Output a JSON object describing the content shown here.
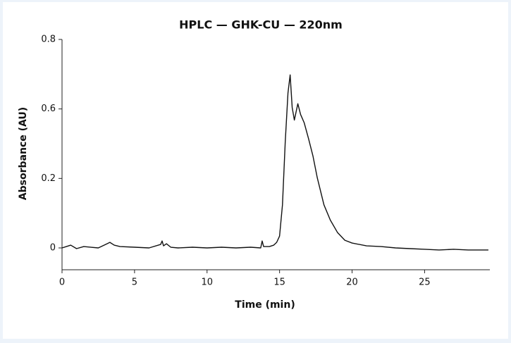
{
  "chart_data": {
    "type": "line",
    "title": "HPLC — GHK-CU — 220nm",
    "x_label": "Time (min)",
    "y_label": "Absorbance (AU)",
    "xlim": [
      0,
      29.5
    ],
    "xticks": [
      0,
      5,
      10,
      15,
      20,
      25
    ],
    "ylim": [
      -0.062,
      0.8
    ],
    "yticks": [
      0,
      0.2,
      0.6,
      0.8
    ],
    "series": [
      {
        "name": "GHK-CU",
        "color": "#111111",
        "x": [
          0,
          0.3,
          0.6,
          1.0,
          1.5,
          2.0,
          2.5,
          3.0,
          3.3,
          3.6,
          4.0,
          5,
          6,
          6.8,
          6.9,
          7.0,
          7.2,
          7.5,
          8,
          9,
          10,
          11,
          12,
          13,
          13.7,
          13.8,
          13.9,
          14.3,
          14.6,
          14.8,
          15.0,
          15.2,
          15.39,
          15.58,
          15.73,
          15.87,
          16.02,
          16.26,
          16.45,
          16.7,
          17.0,
          17.3,
          17.6,
          18.06,
          18.5,
          19.0,
          19.5,
          20,
          21,
          22,
          23,
          24,
          25,
          26,
          27,
          28,
          29.4
        ],
        "values": [
          0.0,
          0.004,
          0.008,
          -0.002,
          0.004,
          0.002,
          0.0,
          0.01,
          0.016,
          0.008,
          0.004,
          0.002,
          0.0,
          0.01,
          0.02,
          0.006,
          0.012,
          0.002,
          0.0,
          0.002,
          0.0,
          0.002,
          0.0,
          0.002,
          0.0,
          0.02,
          0.004,
          0.004,
          0.008,
          0.016,
          0.034,
          0.124,
          0.408,
          0.646,
          0.698,
          0.604,
          0.536,
          0.615,
          0.568,
          0.52,
          0.428,
          0.33,
          0.204,
          0.124,
          0.08,
          0.044,
          0.022,
          0.014,
          0.006,
          0.004,
          0.0,
          -0.002,
          -0.004,
          -0.006,
          -0.004,
          -0.006,
          -0.006
        ]
      }
    ]
  }
}
